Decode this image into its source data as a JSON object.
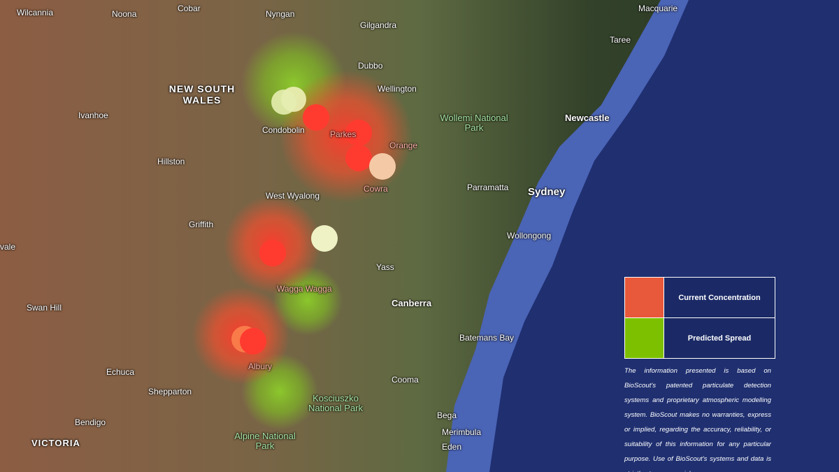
{
  "map": {
    "labels": [
      "Wilcannia",
      "Noona",
      "Cobar",
      "Nyngan",
      "Gilgandra",
      "Macquarie",
      "Taree",
      "Dubbo",
      "Wellington",
      "NEW SOUTH WALES",
      "Ivanhoe",
      "Condobolin",
      "Parkes",
      "Orange",
      "Wollemi National Park",
      "Newcastle",
      "Hillston",
      "West Wyalong",
      "Cowra",
      "Parramatta",
      "Sydney",
      "Griffith",
      "Wollongong",
      "Yass",
      "Wagga Wagga",
      "Canberra",
      "vale",
      "Swan Hill",
      "Batemans Bay",
      "Echuca",
      "Albury",
      "Shepparton",
      "Cooma",
      "Kosciuszko National Park",
      "Bendigo",
      "Bega",
      "Merimbula",
      "Alpine National Park",
      "Eden",
      "VICTORIA"
    ]
  },
  "legend": {
    "items": [
      "Current Concentration",
      "Predicted Spread"
    ]
  },
  "disclaimer": "The information presented is based on BioScout's patented particulate detection systems and proprietary atmospheric modelling system. BioScout makes no warranties, express or implied, regarding the accuracy, reliability, or suitability of this information for any particular purpose. Use of BioScout's systems and data is strictly at your own risk."
}
